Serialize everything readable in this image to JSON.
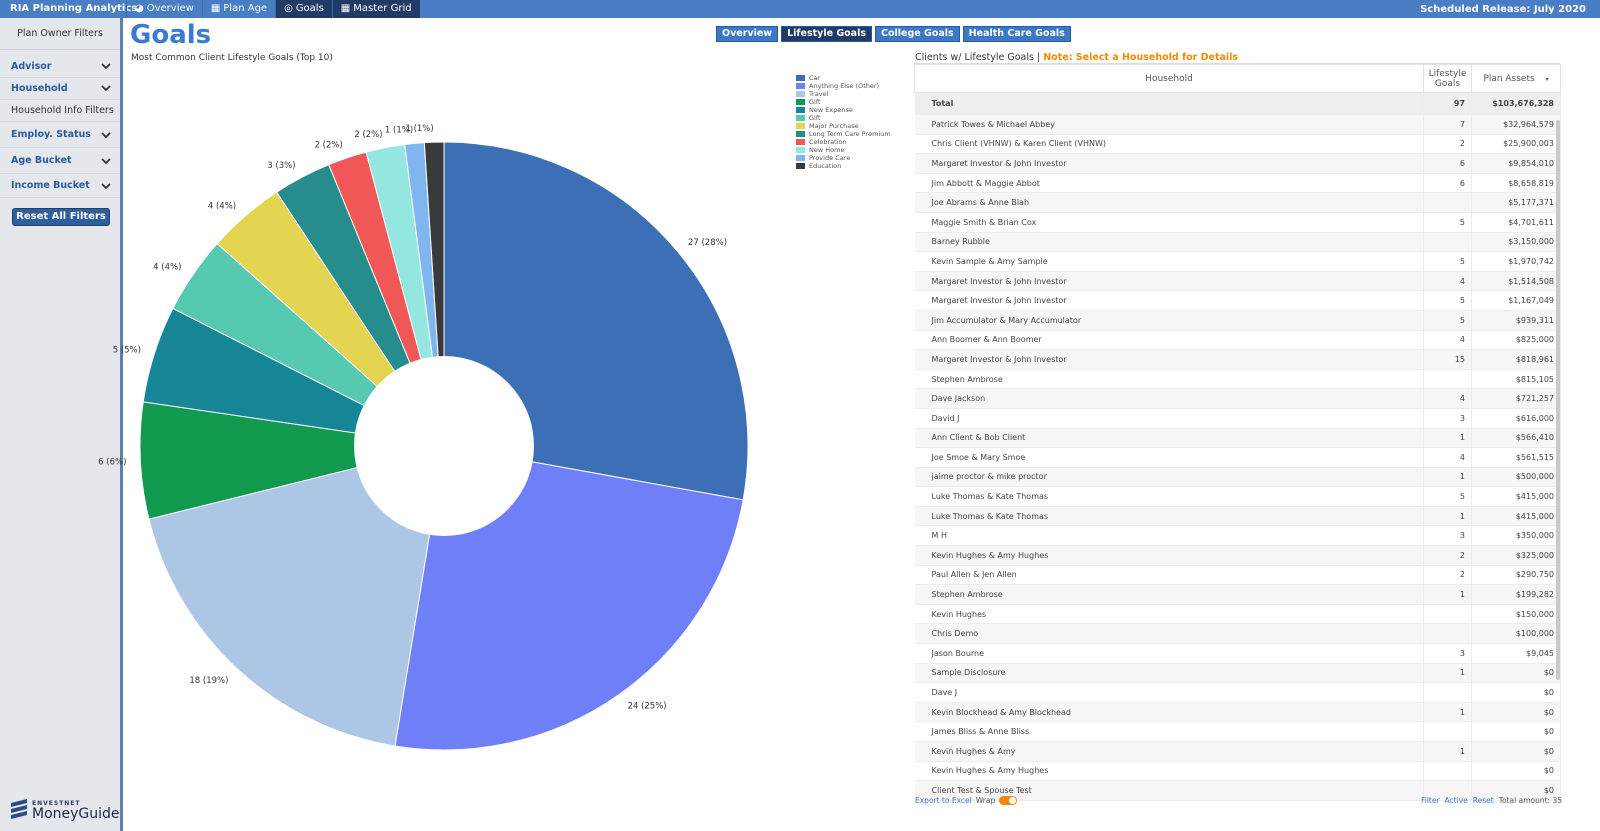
{
  "app": {
    "title": "RIA Planning Analytics",
    "release": "Scheduled Release: July 2020"
  },
  "nav": [
    {
      "label": "Overview",
      "icon": "pie-icon",
      "active": false
    },
    {
      "label": "Plan Age",
      "icon": "calendar-icon",
      "active": false
    },
    {
      "label": "Goals",
      "icon": "target-icon",
      "active": true
    },
    {
      "label": "Master Grid",
      "icon": "grid-icon",
      "active": true
    }
  ],
  "sidebar": {
    "heading": "Plan Owner Filters",
    "filters": [
      {
        "label": "Advisor",
        "expandable": true
      },
      {
        "label": "Household",
        "expandable": true
      },
      {
        "label": "Household Info Filters",
        "expandable": false
      },
      {
        "label": "Employ. Status",
        "expandable": true
      },
      {
        "label": "Age Bucket",
        "expandable": true
      },
      {
        "label": "Income Bucket",
        "expandable": true
      }
    ],
    "reset_label": "Reset All Filters",
    "logo_small": "ENVESTNET",
    "logo_big": "MoneyGuide"
  },
  "page": {
    "title": "Goals",
    "subtabs": [
      {
        "label": "Overview",
        "active": false
      },
      {
        "label": "Lifestyle Goals",
        "active": true
      },
      {
        "label": "College Goals",
        "active": false
      },
      {
        "label": "Health Care Goals",
        "active": false
      }
    ]
  },
  "chart_data": {
    "type": "pie",
    "title": "Most Common Client Lifestyle Goals (Top 10)",
    "hole": true,
    "legend_position": "top-right",
    "slices": [
      {
        "label": "Car",
        "value": 27,
        "display": "27 (28%)",
        "color": "#3d6fb6"
      },
      {
        "label": "Anything Else (Other)",
        "value": 24,
        "display": "24 (25%)",
        "color": "#6e7ff7"
      },
      {
        "label": "Travel",
        "value": 18,
        "display": "18 (19%)",
        "color": "#adc6e5"
      },
      {
        "label": "Gift",
        "value": 6,
        "display": "6 (6%)",
        "color": "#11994e"
      },
      {
        "label": "New Expense",
        "value": 5,
        "display": "5 (5%)",
        "color": "#168595"
      },
      {
        "label": "Gift",
        "value": 4,
        "display": "4 (4%)",
        "color": "#56cab0"
      },
      {
        "label": "Major Purchase",
        "value": 4,
        "display": "4 (4%)",
        "color": "#e3d452"
      },
      {
        "label": "Long Term Care Premium",
        "value": 3,
        "display": "3 (3%)",
        "color": "#268c8c"
      },
      {
        "label": "Celebration",
        "value": 2,
        "display": "2 (2%)",
        "color": "#f05858"
      },
      {
        "label": "New Home",
        "value": 2,
        "display": "2 (2%)",
        "color": "#94e7e0"
      },
      {
        "label": "Provide Care",
        "value": 1,
        "display": "1 (1%)",
        "color": "#7fb6f0"
      },
      {
        "label": "Education",
        "value": 1,
        "display": "1 (1%)",
        "color": "#3a3a3c"
      }
    ]
  },
  "table": {
    "heading": "Clients w/ Lifestyle Goals",
    "separator": "|",
    "note": "Note: Select a Household for Details",
    "columns": [
      "Household",
      "Lifestyle Goals",
      "Plan Assets"
    ],
    "total": {
      "label": "Total",
      "goals": "97",
      "assets": "$103,676,328"
    },
    "rows": [
      {
        "household": "Patrick Towes & Michael Abbey",
        "goals": "7",
        "assets": "$32,964,579"
      },
      {
        "household": "Chris Client (VHNW) & Karen Client (VHNW)",
        "goals": "2",
        "assets": "$25,900,003"
      },
      {
        "household": "Margaret Investor & John Investor",
        "goals": "6",
        "assets": "$9,854,010"
      },
      {
        "household": "Jim Abbott & Maggie Abbot",
        "goals": "6",
        "assets": "$8,658,819"
      },
      {
        "household": "Joe Abrams & Anne Blah",
        "goals": "",
        "assets": "$5,177,371"
      },
      {
        "household": "Maggie Smith & Brian Cox",
        "goals": "5",
        "assets": "$4,701,611"
      },
      {
        "household": "Barney Rubble",
        "goals": "",
        "assets": "$3,150,000"
      },
      {
        "household": "Kevin Sample & Amy Sample",
        "goals": "5",
        "assets": "$1,970,742"
      },
      {
        "household": "Margaret Investor & John Investor",
        "goals": "4",
        "assets": "$1,514,508"
      },
      {
        "household": "Margaret Investor & John Investor",
        "goals": "5",
        "assets": "$1,167,049"
      },
      {
        "household": "Jim Accumulator & Mary Accumulator",
        "goals": "5",
        "assets": "$939,311"
      },
      {
        "household": "Ann Boomer & Ann Boomer",
        "goals": "4",
        "assets": "$825,000"
      },
      {
        "household": "Margaret Investor & John Investor",
        "goals": "15",
        "assets": "$818,961"
      },
      {
        "household": "Stephen Ambrose",
        "goals": "",
        "assets": "$815,105"
      },
      {
        "household": "Dave Jackson",
        "goals": "4",
        "assets": "$721,257"
      },
      {
        "household": "David J",
        "goals": "3",
        "assets": "$616,000"
      },
      {
        "household": "Ann Client & Bob Client",
        "goals": "1",
        "assets": "$566,410"
      },
      {
        "household": "Joe Smoe & Mary Smoe",
        "goals": "4",
        "assets": "$561,515"
      },
      {
        "household": "jaime proctor & mike proctor",
        "goals": "1",
        "assets": "$500,000"
      },
      {
        "household": "Luke Thomas & Kate Thomas",
        "goals": "5",
        "assets": "$415,000"
      },
      {
        "household": "Luke Thomas & Kate Thomas",
        "goals": "1",
        "assets": "$415,000"
      },
      {
        "household": "M H",
        "goals": "3",
        "assets": "$350,000"
      },
      {
        "household": "Kevin Hughes & Amy Hughes",
        "goals": "2",
        "assets": "$325,000"
      },
      {
        "household": "Paul Allen & Jen Allen",
        "goals": "2",
        "assets": "$290,750"
      },
      {
        "household": "Stephen Ambrose",
        "goals": "1",
        "assets": "$199,282"
      },
      {
        "household": "Kevin Hughes",
        "goals": "",
        "assets": "$150,000"
      },
      {
        "household": "Chris Demo",
        "goals": "",
        "assets": "$100,000"
      },
      {
        "household": "Jason Bourne",
        "goals": "3",
        "assets": "$9,045"
      },
      {
        "household": "Sample Disclosure",
        "goals": "1",
        "assets": "$0"
      },
      {
        "household": "Dave J",
        "goals": "",
        "assets": "$0"
      },
      {
        "household": "Kevin Blockhead & Amy Blockhead",
        "goals": "1",
        "assets": "$0"
      },
      {
        "household": "James Bliss & Anne Bliss",
        "goals": "",
        "assets": "$0"
      },
      {
        "household": "Kevin Hughes & Amy",
        "goals": "1",
        "assets": "$0"
      },
      {
        "household": "Kevin Hughes & Amy Hughes",
        "goals": "",
        "assets": "$0"
      },
      {
        "household": "Client Test & Spouse Test",
        "goals": "",
        "assets": "$0"
      }
    ],
    "footer": {
      "export_label": "Export to Excel",
      "wrap_label": "Wrap",
      "filter_label": "Filter",
      "active_label": "Active",
      "reset_label": "Reset",
      "total_amount": "Total amount: 35"
    }
  }
}
